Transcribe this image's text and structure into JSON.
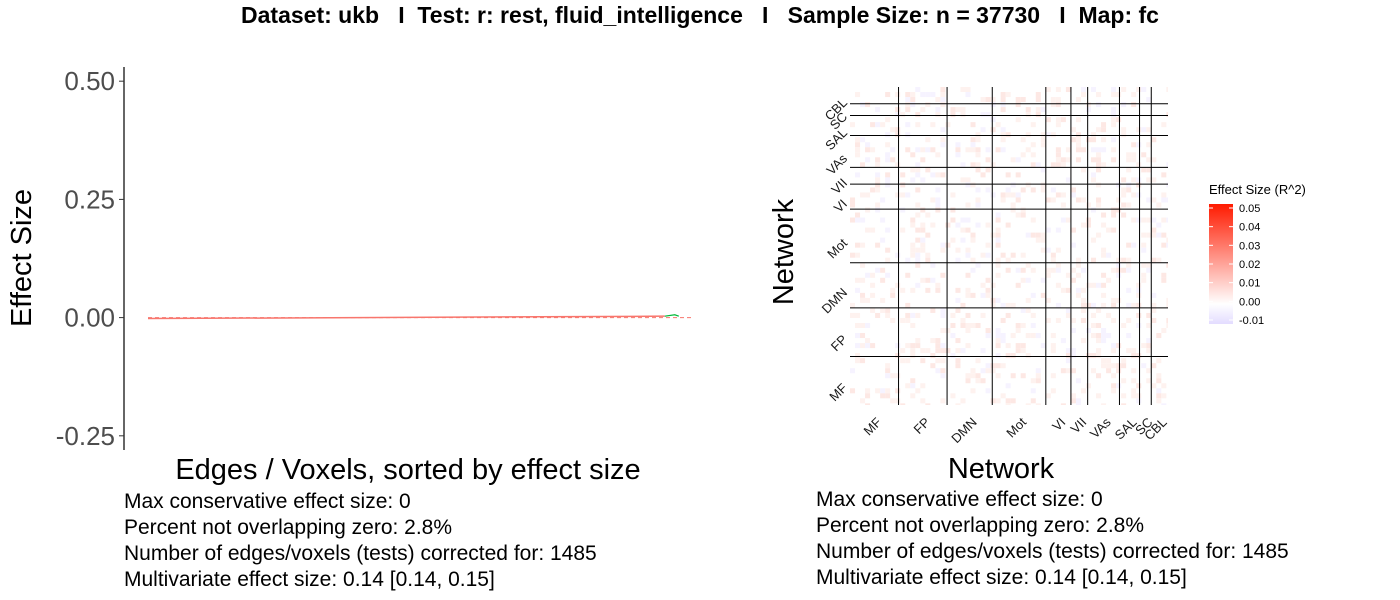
{
  "title": "Dataset: ukb   I  Test: r: rest, fluid_intelligence   I   Sample Size: n = 37730   I  Map: fc",
  "colors": {
    "line": "#f8766d",
    "ci_line": "#00ba38",
    "zero_line": "#f8766d",
    "heat_low": "#e3dcff",
    "heat_mid": "#ffffff",
    "heat_high": "#ff1a00",
    "grid_line": "#000000"
  },
  "chart_data": [
    {
      "type": "line",
      "title": "",
      "xlabel": "Edges / Voxels, sorted by effect size",
      "ylabel": "Effect Size",
      "ylim": [
        -0.28,
        0.53
      ],
      "yticks": [
        "-0.25",
        "0.00",
        "0.25",
        "0.50"
      ],
      "ytick_values": [
        -0.25,
        0.0,
        0.25,
        0.5
      ],
      "n_points": 1485,
      "zero_line": true,
      "series": [
        {
          "values_start": -0.002,
          "values_end": 0.003,
          "tail_start_fraction": 0.95,
          "tail_end_value": 0.006
        }
      ]
    },
    {
      "type": "heatmap",
      "xlabel": "Network",
      "ylabel": "Network",
      "networks": [
        "MF",
        "FP",
        "DMN",
        "Mot",
        "VI",
        "VII",
        "VAs",
        "SAL",
        "SC",
        "CBL"
      ],
      "network_sizes": [
        29,
        29,
        27,
        32,
        15,
        10,
        19,
        12,
        7,
        10
      ],
      "legend": {
        "title": "Effect Size (R^2)",
        "labels": [
          "0.05",
          "0.04",
          "0.03",
          "0.02",
          "0.01",
          "0.00",
          "-0.01"
        ],
        "values": [
          0.05,
          0.04,
          0.03,
          0.02,
          0.01,
          0.0,
          -0.01
        ],
        "min": -0.01,
        "max": 0.05
      }
    }
  ],
  "stats_left": {
    "line1": "Max conservative effect size: 0",
    "line2": "Percent not overlapping zero: 2.8%",
    "line3": "Number of edges/voxels (tests) corrected for: 1485",
    "line4": "Multivariate effect size: 0.14 [0.14, 0.15]"
  },
  "stats_right": {
    "line1": "Max conservative effect size: 0",
    "line2": "Percent not overlapping zero: 2.8%",
    "line3": "Number of edges/voxels (tests) corrected for: 1485",
    "line4": "Multivariate effect size: 0.14 [0.14, 0.15]"
  }
}
